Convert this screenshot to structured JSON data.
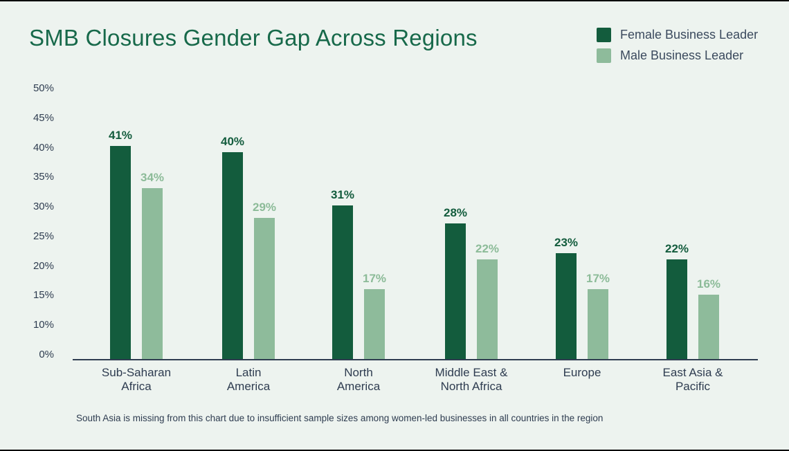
{
  "colors": {
    "background": "#edf3ef",
    "title_green": "#17694a",
    "dark_green": "#135c3d",
    "light_green": "#8ebb9b",
    "slate_text": "#2e3c50",
    "legend_text": "#3b4a5e",
    "axis_line": "#2e3c50",
    "edge_strip": "#000000"
  },
  "chart_data": {
    "type": "bar",
    "title": "SMB Closures Gender Gap Across Regions",
    "categories": [
      [
        "Sub-Saharan",
        "Africa"
      ],
      [
        "Latin",
        "America"
      ],
      [
        "North",
        "America"
      ],
      [
        "Middle East &",
        "North Africa"
      ],
      [
        "Europe"
      ],
      [
        "East Asia &",
        "Pacific"
      ]
    ],
    "series": [
      {
        "name": "Female Business Leader",
        "color": "#135c3d",
        "label_color": "#135c3d",
        "values": [
          41,
          40,
          31,
          28,
          23,
          22
        ],
        "labels": [
          "41%",
          "40%",
          "31%",
          "28%",
          "23%",
          "22%"
        ]
      },
      {
        "name": "Male Business Leader",
        "color": "#8ebb9b",
        "label_color": "#8cbb98",
        "values": [
          34,
          29,
          17,
          22,
          17,
          16
        ],
        "labels": [
          "34%",
          "29%",
          "17%",
          "22%",
          "17%",
          "16%"
        ]
      }
    ],
    "y_ticks": [
      "50%",
      "45%",
      "40%",
      "35%",
      "30%",
      "25%",
      "20%",
      "15%",
      "10%",
      "0%"
    ],
    "ylim": [
      0,
      50
    ],
    "xlabel": "",
    "ylabel": "",
    "grid": false,
    "legend_position": "top-right",
    "footnote": "South Asia is missing from this chart due to insufficient sample sizes among women-led businesses in all countries in the region"
  }
}
